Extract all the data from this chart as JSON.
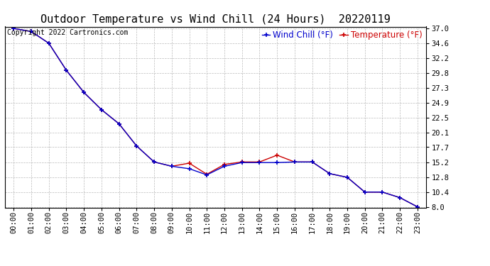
{
  "title": "Outdoor Temperature vs Wind Chill (24 Hours)  20220119",
  "copyright_text": "Copyright 2022 Cartronics.com",
  "legend_wind_chill": "Wind Chill (°F)",
  "legend_temperature": "Temperature (°F)",
  "x_labels": [
    "00:00",
    "01:00",
    "02:00",
    "03:00",
    "04:00",
    "05:00",
    "06:00",
    "07:00",
    "08:00",
    "09:00",
    "10:00",
    "11:00",
    "12:00",
    "13:00",
    "14:00",
    "15:00",
    "16:00",
    "17:00",
    "18:00",
    "19:00",
    "20:00",
    "21:00",
    "22:00",
    "23:00"
  ],
  "temperature": [
    37.0,
    36.5,
    34.6,
    30.2,
    26.6,
    23.8,
    21.5,
    17.9,
    15.3,
    14.6,
    15.1,
    13.3,
    14.9,
    15.3,
    15.3,
    16.4,
    15.3,
    15.3,
    13.4,
    12.8,
    10.4,
    10.4,
    9.5,
    8.0
  ],
  "wind_chill": [
    37.0,
    36.5,
    34.6,
    30.2,
    26.6,
    23.8,
    21.5,
    17.9,
    15.3,
    14.6,
    14.2,
    13.2,
    14.6,
    15.2,
    15.2,
    15.2,
    15.3,
    15.3,
    13.4,
    12.8,
    10.4,
    10.4,
    9.5,
    8.0
  ],
  "temp_color": "#cc0000",
  "wind_chill_color": "#0000cc",
  "marker": "+",
  "ylim_min": 8.0,
  "ylim_max": 37.0,
  "yticks": [
    8.0,
    10.4,
    12.8,
    15.2,
    17.7,
    20.1,
    22.5,
    24.9,
    27.3,
    29.8,
    32.2,
    34.6,
    37.0
  ],
  "background_color": "#ffffff",
  "grid_color": "#bbbbbb",
  "title_fontsize": 11,
  "tick_fontsize": 7.5,
  "legend_fontsize": 8.5,
  "copyright_fontsize": 7
}
